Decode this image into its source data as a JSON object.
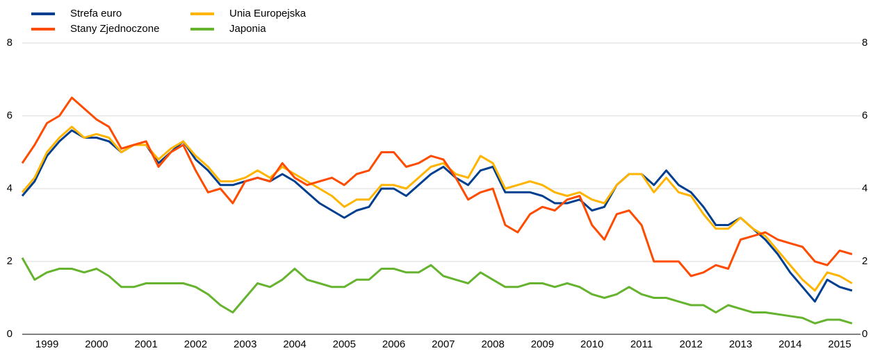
{
  "chart_data": {
    "type": "line",
    "x": [
      1999,
      1999.25,
      1999.5,
      1999.75,
      2000,
      2000.25,
      2000.5,
      2000.75,
      2001,
      2001.25,
      2001.5,
      2001.75,
      2002,
      2002.25,
      2002.5,
      2002.75,
      2003,
      2003.25,
      2003.5,
      2003.75,
      2004,
      2004.25,
      2004.5,
      2004.75,
      2005,
      2005.25,
      2005.5,
      2005.75,
      2006,
      2006.25,
      2006.5,
      2006.75,
      2007,
      2007.25,
      2007.5,
      2007.75,
      2008,
      2008.25,
      2008.5,
      2008.75,
      2009,
      2009.25,
      2009.5,
      2009.75,
      2010,
      2010.25,
      2010.5,
      2010.75,
      2011,
      2011.25,
      2011.5,
      2011.75,
      2012,
      2012.25,
      2012.5,
      2012.75,
      2013,
      2013.25,
      2013.5,
      2013.75,
      2014,
      2014.25,
      2014.5,
      2014.75,
      2015,
      2015.25,
      2015.5,
      2015.75
    ],
    "series": [
      {
        "name": "Strefa euro",
        "color": "#003f8f",
        "values": [
          3.8,
          4.2,
          4.9,
          5.3,
          5.6,
          5.4,
          5.4,
          5.3,
          5.0,
          5.2,
          5.2,
          4.7,
          5.0,
          5.3,
          4.8,
          4.5,
          4.1,
          4.1,
          4.2,
          4.3,
          4.2,
          4.4,
          4.2,
          3.9,
          3.6,
          3.4,
          3.2,
          3.4,
          3.5,
          4.0,
          4.0,
          3.8,
          4.1,
          4.4,
          4.6,
          4.3,
          4.1,
          4.5,
          4.6,
          3.9,
          3.9,
          3.9,
          3.8,
          3.6,
          3.6,
          3.7,
          3.4,
          3.5,
          4.1,
          4.4,
          4.4,
          4.1,
          4.5,
          4.1,
          3.9,
          3.5,
          3.0,
          3.0,
          3.2,
          2.9,
          2.6,
          2.2,
          1.7,
          1.3,
          0.9,
          1.5,
          1.3,
          1.2
        ]
      },
      {
        "name": "Unia Europejska",
        "color": "#ffb400",
        "values": [
          3.9,
          4.3,
          5.0,
          5.4,
          5.7,
          5.4,
          5.5,
          5.4,
          5.0,
          5.2,
          5.2,
          4.8,
          5.1,
          5.3,
          4.9,
          4.6,
          4.2,
          4.2,
          4.3,
          4.5,
          4.3,
          4.6,
          4.4,
          4.2,
          4.0,
          3.8,
          3.5,
          3.7,
          3.7,
          4.1,
          4.1,
          4.0,
          4.3,
          4.6,
          4.7,
          4.4,
          4.3,
          4.9,
          4.7,
          4.0,
          4.1,
          4.2,
          4.1,
          3.9,
          3.8,
          3.9,
          3.7,
          3.6,
          4.1,
          4.4,
          4.4,
          3.9,
          4.3,
          3.9,
          3.8,
          3.3,
          2.9,
          2.9,
          3.2,
          2.9,
          2.7,
          2.3,
          1.9,
          1.5,
          1.2,
          1.7,
          1.6,
          1.4
        ]
      },
      {
        "name": "Stany Zjednoczone",
        "color": "#ff4b00",
        "values": [
          4.7,
          5.2,
          5.8,
          6.0,
          6.5,
          6.2,
          5.9,
          5.7,
          5.1,
          5.2,
          5.3,
          4.6,
          5.0,
          5.2,
          4.5,
          3.9,
          4.0,
          3.6,
          4.2,
          4.3,
          4.2,
          4.7,
          4.3,
          4.1,
          4.2,
          4.3,
          4.1,
          4.4,
          4.5,
          5.0,
          5.0,
          4.6,
          4.7,
          4.9,
          4.8,
          4.3,
          3.7,
          3.9,
          4.0,
          3.0,
          2.8,
          3.3,
          3.5,
          3.4,
          3.7,
          3.8,
          3.0,
          2.6,
          3.3,
          3.4,
          3.0,
          2.0,
          2.0,
          2.0,
          1.6,
          1.7,
          1.9,
          1.8,
          2.6,
          2.7,
          2.8,
          2.6,
          2.5,
          2.4,
          2.0,
          1.9,
          2.3,
          2.2
        ]
      },
      {
        "name": "Japonia",
        "color": "#65b32e",
        "values": [
          2.1,
          1.5,
          1.7,
          1.8,
          1.8,
          1.7,
          1.8,
          1.6,
          1.3,
          1.3,
          1.4,
          1.4,
          1.4,
          1.4,
          1.3,
          1.1,
          0.8,
          0.6,
          1.0,
          1.4,
          1.3,
          1.5,
          1.8,
          1.5,
          1.4,
          1.3,
          1.3,
          1.5,
          1.5,
          1.8,
          1.8,
          1.7,
          1.7,
          1.9,
          1.6,
          1.5,
          1.4,
          1.7,
          1.5,
          1.3,
          1.3,
          1.4,
          1.4,
          1.3,
          1.4,
          1.3,
          1.1,
          1.0,
          1.1,
          1.3,
          1.1,
          1.0,
          1.0,
          0.9,
          0.8,
          0.8,
          0.6,
          0.8,
          0.7,
          0.6,
          0.6,
          0.55,
          0.5,
          0.45,
          0.3,
          0.4,
          0.4,
          0.3
        ]
      }
    ],
    "xlim": [
      1999,
      2015.92
    ],
    "xticks": [
      {
        "value": 1999.5,
        "label": "1999"
      },
      {
        "value": 2000.5,
        "label": "2000"
      },
      {
        "value": 2001.5,
        "label": "2001"
      },
      {
        "value": 2002.5,
        "label": "2002"
      },
      {
        "value": 2003.5,
        "label": "2003"
      },
      {
        "value": 2004.5,
        "label": "2004"
      },
      {
        "value": 2005.5,
        "label": "2005"
      },
      {
        "value": 2006.5,
        "label": "2006"
      },
      {
        "value": 2007.5,
        "label": "2007"
      },
      {
        "value": 2008.5,
        "label": "2008"
      },
      {
        "value": 2009.5,
        "label": "2009"
      },
      {
        "value": 2010.5,
        "label": "2010"
      },
      {
        "value": 2011.5,
        "label": "2011"
      },
      {
        "value": 2012.5,
        "label": "2012"
      },
      {
        "value": 2013.5,
        "label": "2013"
      },
      {
        "value": 2014.5,
        "label": "2014"
      },
      {
        "value": 2015.5,
        "label": "2015"
      }
    ],
    "ylim": [
      0,
      8
    ],
    "yticks": [
      0,
      2,
      4,
      6,
      8
    ],
    "y2lim": [
      0,
      8
    ],
    "y2ticks": [
      0,
      2,
      4,
      6,
      8
    ],
    "grid": true,
    "legend": "top-left"
  }
}
